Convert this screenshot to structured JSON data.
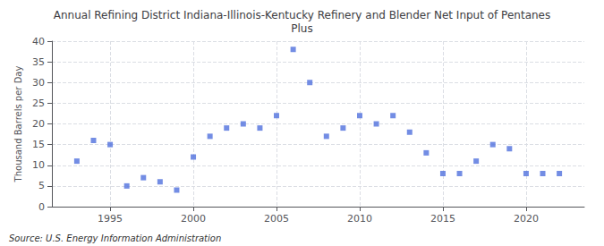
{
  "chart_data": {
    "type": "scatter",
    "title": "Annual Refining District Indiana-Illinois-Kentucky Refinery and Blender Net Input of Pentanes\nPlus",
    "ylabel": "Thousand Barrels per Day",
    "annotation": "Source: U.S. Energy Information Administration",
    "x": [
      1993,
      1994,
      1995,
      1996,
      1997,
      1998,
      1999,
      2000,
      2001,
      2002,
      2003,
      2004,
      2005,
      2006,
      2007,
      2008,
      2009,
      2010,
      2011,
      2012,
      2013,
      2014,
      2015,
      2016,
      2017,
      2018,
      2019,
      2020,
      2021,
      2022
    ],
    "values": [
      11,
      16,
      15,
      5,
      7,
      6,
      4,
      12,
      17,
      19,
      20,
      19,
      22,
      38,
      30,
      17,
      19,
      22,
      20,
      22,
      18,
      13,
      8,
      8,
      11,
      15,
      14,
      8,
      8,
      8
    ],
    "marker": "square",
    "xlim": [
      1991.5,
      2023.5
    ],
    "xticks": [
      1995,
      2000,
      2005,
      2010,
      2015,
      2020
    ],
    "ylim": [
      0,
      40
    ],
    "yticks": [
      0,
      5,
      10,
      15,
      20,
      25,
      30,
      35,
      40
    ],
    "grid": true
  }
}
